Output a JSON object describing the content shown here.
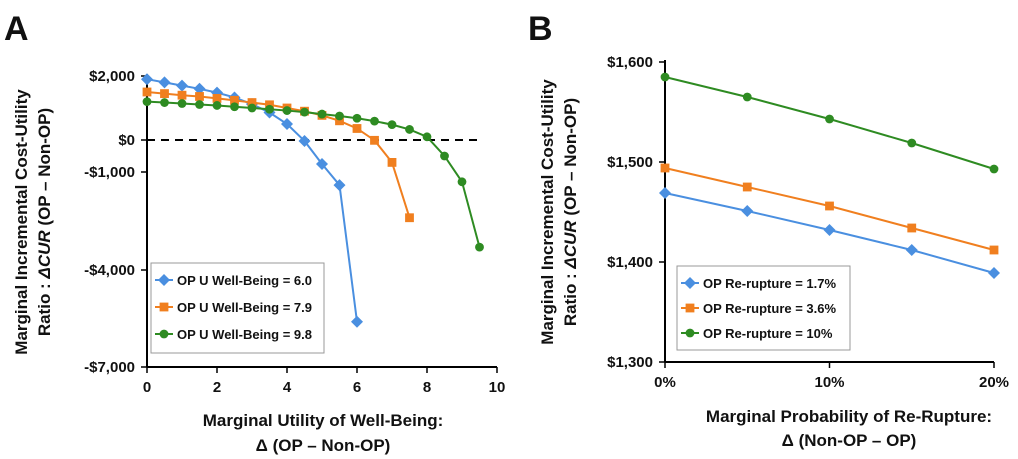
{
  "figure": {
    "panel_a_letter": "A",
    "panel_b_letter": "B"
  },
  "chart_data": [
    {
      "type": "line",
      "panel": "A",
      "xlabel_lines": [
        "Marginal Utility of Well-Being:",
        "Δ (OP – Non-OP)"
      ],
      "ylabel_lines": [
        {
          "parts": [
            {
              "text": "Marginal Incremental Cost-Utility",
              "italic": false
            }
          ]
        },
        {
          "parts": [
            {
              "text": "Ratio : ",
              "italic": false
            },
            {
              "text": "ΔCUR",
              "italic": true
            },
            {
              "text": " (OP – Non-OP)",
              "italic": false
            }
          ]
        }
      ],
      "xlim": [
        0,
        10
      ],
      "ylim": [
        -7000,
        2000
      ],
      "x_ticks": [
        0,
        2,
        4,
        6,
        8,
        10
      ],
      "x_tick_labels": [
        "0",
        "2",
        "4",
        "6",
        "8",
        "10"
      ],
      "y_ticks": [
        2000,
        0,
        -1000,
        -4000,
        -7000
      ],
      "y_tick_labels": [
        "$2,000",
        "$0",
        "-$1,000",
        "-$4,000",
        "-$7,000"
      ],
      "y_scale": "symlog-like (non-uniform: 2000→0 same spacing as 0→-1000)",
      "reference_line": {
        "y": 0,
        "style": "dashed",
        "x_range": [
          0,
          9.5
        ]
      },
      "grid": false,
      "legend_position": "bottom-left",
      "series": [
        {
          "name": "OP U Well-Being = 6.0",
          "color": "#4a8fe0",
          "marker": "diamond",
          "x": [
            0,
            0.5,
            1,
            1.5,
            2,
            2.5,
            3,
            3.5,
            4,
            4.5,
            5,
            5.5,
            6
          ],
          "y": [
            1900,
            1800,
            1700,
            1600,
            1480,
            1330,
            1120,
            860,
            500,
            -30,
            -750,
            -1400,
            -5600
          ]
        },
        {
          "name": "OP U Well-Being = 7.9",
          "color": "#f07f1f",
          "marker": "square",
          "x": [
            0,
            0.5,
            1,
            1.5,
            2,
            2.5,
            3,
            3.5,
            4,
            4.5,
            5,
            5.5,
            6,
            6.5,
            7,
            7.5
          ],
          "y": [
            1500,
            1450,
            1400,
            1360,
            1300,
            1240,
            1170,
            1100,
            1000,
            900,
            770,
            600,
            360,
            -10,
            -700,
            -2400
          ]
        },
        {
          "name": "OP U Well-Being = 9.8",
          "color": "#2e8b22",
          "marker": "circle",
          "x": [
            0,
            0.5,
            1,
            1.5,
            2,
            2.5,
            3,
            3.5,
            4,
            4.5,
            5,
            5.5,
            6,
            6.5,
            7,
            7.5,
            8,
            8.5,
            9,
            9.5
          ],
          "y": [
            1200,
            1170,
            1140,
            1110,
            1080,
            1040,
            1000,
            960,
            920,
            870,
            810,
            750,
            680,
            590,
            480,
            330,
            100,
            -500,
            -1300,
            -3300
          ]
        }
      ]
    },
    {
      "type": "line",
      "panel": "B",
      "xlabel_lines": [
        "Marginal Probability of Re-Rupture:",
        "Δ (Non-OP – OP)"
      ],
      "ylabel_lines": [
        {
          "parts": [
            {
              "text": "Marginal Incremental Cost-Utility",
              "italic": false
            }
          ]
        },
        {
          "parts": [
            {
              "text": "Ratio : ",
              "italic": false
            },
            {
              "text": "ΔCUR",
              "italic": true
            },
            {
              "text": " (OP – Non-OP)",
              "italic": false
            }
          ]
        }
      ],
      "xlim": [
        0,
        20
      ],
      "ylim": [
        1300,
        1600
      ],
      "x_ticks": [
        0,
        10,
        20
      ],
      "x_tick_labels": [
        "0%",
        "10%",
        "20%"
      ],
      "y_ticks": [
        1300,
        1400,
        1500,
        1600
      ],
      "y_tick_labels": [
        "$1,300",
        "$1,400",
        "$1,500",
        "$1,600"
      ],
      "grid": false,
      "legend_position": "bottom-left",
      "series": [
        {
          "name": "OP Re-rupture = 1.7%",
          "color": "#4a8fe0",
          "marker": "diamond",
          "x": [
            0,
            5,
            10,
            15,
            20
          ],
          "y": [
            1469,
            1451,
            1432,
            1412,
            1389
          ]
        },
        {
          "name": "OP Re-rupture = 3.6%",
          "color": "#f07f1f",
          "marker": "square",
          "x": [
            0,
            5,
            10,
            15,
            20
          ],
          "y": [
            1494,
            1475,
            1456,
            1434,
            1412
          ]
        },
        {
          "name": "OP Re-rupture = 10%",
          "color": "#2e8b22",
          "marker": "circle",
          "x": [
            0,
            5,
            10,
            15,
            20
          ],
          "y": [
            1585,
            1565,
            1543,
            1519,
            1493
          ]
        }
      ]
    }
  ]
}
